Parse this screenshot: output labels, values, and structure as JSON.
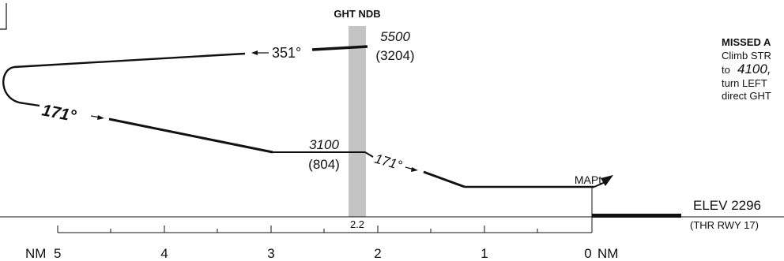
{
  "fix": {
    "name": "GHT NDB",
    "distance": "2.2"
  },
  "altitudes": {
    "upper": {
      "msl": "5500",
      "agl": "(3204)"
    },
    "lower": {
      "msl": "3100",
      "agl": "(804)"
    }
  },
  "courses": {
    "outbound": "351°",
    "inbound_turn": "171°",
    "inbound_final": "171°"
  },
  "mapt_label": "MAPt",
  "missed_approach": {
    "title": "MISSED A",
    "lines": [
      "Climb STR",
      "to",
      "4100,",
      "turn LEFT",
      "direct GHT"
    ]
  },
  "elevation": {
    "label": "ELEV 2296",
    "threshold": "(THR RWY 17)"
  },
  "scale": {
    "prefix": "NM",
    "ticks": [
      "5",
      "4",
      "3",
      "2",
      "1",
      "0"
    ],
    "suffix": "NM"
  }
}
